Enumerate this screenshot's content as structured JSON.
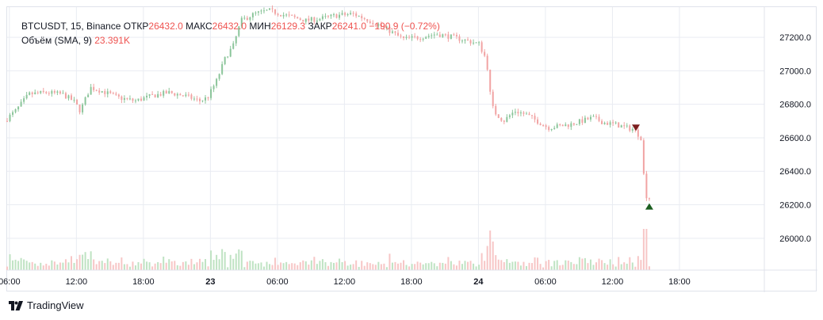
{
  "legend": {
    "symbol": "BTCUSDT, 15, Binance",
    "open_label": "ОТКР",
    "open_value": "26432.0",
    "high_label": "МАКС",
    "high_value": "26432.0",
    "low_label": "МИН",
    "low_value": "26129.3",
    "close_label": "ЗАКР",
    "close_value": "26241.0",
    "change_value": "−190.9 (−0.72%)",
    "volume_label": "Объём (SMA, 9)",
    "volume_value": "23.391K"
  },
  "brand": {
    "name": "TradingView"
  },
  "colors": {
    "up": "#26a69a",
    "down": "#ef5350",
    "up_soft": "#8bc59a",
    "down_soft": "#f1a3a3",
    "grid": "#e9ecf2",
    "marker_down": "#7b1e1e",
    "marker_up": "#1b5e20"
  },
  "chart_data": {
    "type": "candlestick",
    "y_ticks": [
      "27200.0",
      "27000.0",
      "26800.0",
      "26600.0",
      "26400.0",
      "26200.0",
      "26000.0"
    ],
    "y_tick_values": [
      27200,
      27000,
      26800,
      26600,
      26400,
      26200,
      26000
    ],
    "ylim": [
      25810,
      27380
    ],
    "x_ticks": [
      "06:00",
      "12:00",
      "18:00",
      "23",
      "06:00",
      "12:00",
      "18:00",
      "24",
      "06:00",
      "12:00",
      "18:00"
    ],
    "x_tick_bold": [
      false,
      false,
      false,
      true,
      false,
      false,
      false,
      true,
      false,
      false,
      false
    ],
    "x_tick_hours": [
      6,
      12,
      18,
      24,
      30,
      36,
      42,
      48,
      54,
      60,
      66
    ],
    "x_range_hours": [
      5.8,
      73.6
    ],
    "last_bar_hour": 63.5,
    "trend_hours": [
      5.8,
      6.8,
      8,
      9.5,
      11,
      12,
      12.6,
      13.5,
      14.5,
      16,
      17.5,
      19,
      20.5,
      22,
      23.3,
      24,
      24.8,
      25.6,
      26.3,
      27,
      28.2,
      29.5,
      31,
      32.8,
      34,
      35.5,
      37,
      38.5,
      40,
      41.5,
      43,
      44.5,
      46,
      47.2,
      48.3,
      49,
      49.2,
      49.6,
      50.5,
      51.5,
      52.5,
      53.5,
      54.5,
      55.5,
      56.5,
      57.5,
      58.5,
      59.5,
      60.5,
      61.5,
      62.2,
      62.8,
      63.0,
      63.2,
      63.5
    ],
    "trend_prices": [
      26700,
      26760,
      26860,
      26870,
      26860,
      26820,
      26760,
      26900,
      26880,
      26840,
      26820,
      26850,
      26870,
      26850,
      26820,
      26840,
      26940,
      27080,
      27150,
      27300,
      27340,
      27360,
      27330,
      27300,
      27310,
      27330,
      27340,
      27300,
      27250,
      27190,
      27200,
      27220,
      27200,
      27180,
      27160,
      27060,
      26900,
      26760,
      26700,
      26760,
      26740,
      26700,
      26660,
      26670,
      26680,
      26700,
      26720,
      26690,
      26680,
      26660,
      26650,
      26600,
      26420,
      26260,
      26240
    ],
    "noise_scale": 22,
    "volume_max": 2.7,
    "sell_marker": {
      "time_hour": 62.1,
      "price": 26660
    },
    "buy_marker": {
      "time_hour": 63.3,
      "price": 26190
    }
  }
}
